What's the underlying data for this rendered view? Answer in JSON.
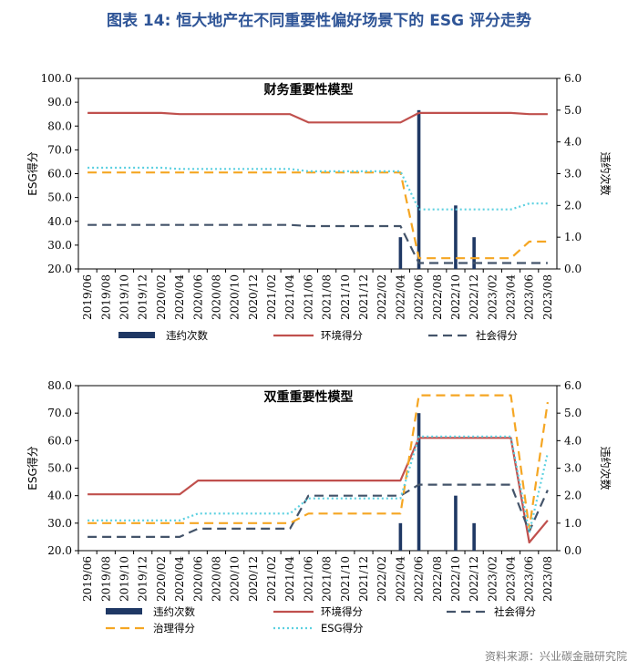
{
  "figure": {
    "title": "图表 14: 恒大地产在不同重要性偏好场景下的 ESG 评分走势",
    "source": "资料来源：兴业碳金融研究院"
  },
  "colors": {
    "violation": "#1f3864",
    "environment": "#c0504d",
    "social": "#44546a",
    "governance": "#f5a623",
    "esg": "#5bd0e0"
  },
  "chart_data": [
    {
      "type": "line",
      "title": "财务重要性模型",
      "ylabel": "ESG得分",
      "y2label": "违约次数",
      "ylim": [
        20,
        100
      ],
      "y2lim": [
        0,
        6
      ],
      "yticks": [
        "20.0",
        "30.0",
        "40.0",
        "50.0",
        "60.0",
        "70.0",
        "80.0",
        "90.0",
        "100.0"
      ],
      "y2ticks": [
        "0.0",
        "1.0",
        "2.0",
        "3.0",
        "4.0",
        "5.0",
        "6.0"
      ],
      "x": [
        "2019/06",
        "2019/08",
        "2019/10",
        "2019/12",
        "2020/02",
        "2020/04",
        "2020/06",
        "2020/08",
        "2020/10",
        "2020/12",
        "2021/02",
        "2021/04",
        "2021/06",
        "2021/08",
        "2021/10",
        "2021/12",
        "2022/02",
        "2022/04",
        "2022/06",
        "2022/08",
        "2022/10",
        "2022/12",
        "2023/02",
        "2023/04",
        "2023/06",
        "2023/08"
      ],
      "bars": {
        "name": "违约次数",
        "values": [
          0,
          0,
          0,
          0,
          0,
          0,
          0,
          0,
          0,
          0,
          0,
          0,
          0,
          0,
          0,
          0,
          0,
          1,
          5,
          0,
          2,
          1,
          0,
          0,
          0,
          0
        ]
      },
      "series": [
        {
          "name": "环境得分",
          "key": "environment",
          "dash": "solid",
          "values": [
            85.5,
            85.5,
            85.5,
            85.5,
            85.5,
            85.0,
            85.0,
            85.0,
            85.0,
            85.0,
            85.0,
            85.0,
            81.5,
            81.5,
            81.5,
            81.5,
            81.5,
            81.5,
            85.5,
            85.5,
            85.5,
            85.5,
            85.5,
            85.5,
            85.0,
            85.0
          ]
        },
        {
          "name": "社会得分",
          "key": "social",
          "dash": "dash",
          "values": [
            38.5,
            38.5,
            38.5,
            38.5,
            38.5,
            38.5,
            38.5,
            38.5,
            38.5,
            38.5,
            38.5,
            38.5,
            38.0,
            38.0,
            38.0,
            38.0,
            38.0,
            38.0,
            22.5,
            22.5,
            22.5,
            22.5,
            22.5,
            22.5,
            22.5,
            22.5
          ]
        },
        {
          "name": "治理得分",
          "key": "governance",
          "dash": "dash",
          "values": [
            60.5,
            60.5,
            60.5,
            60.5,
            60.5,
            60.5,
            60.5,
            60.5,
            60.5,
            60.5,
            60.5,
            60.5,
            60.5,
            60.5,
            60.5,
            60.5,
            60.5,
            60.5,
            24.5,
            24.5,
            24.5,
            24.5,
            24.5,
            24.5,
            31.5,
            31.5
          ]
        },
        {
          "name": "ESG得分",
          "key": "esg",
          "dash": "dot",
          "values": [
            62.5,
            62.5,
            62.5,
            62.5,
            62.5,
            62.0,
            62.0,
            62.0,
            62.0,
            62.0,
            62.0,
            62.0,
            61.0,
            61.0,
            61.0,
            61.0,
            61.0,
            61.0,
            45.0,
            45.0,
            45.0,
            45.0,
            45.0,
            45.0,
            47.5,
            47.5
          ]
        }
      ],
      "legend": [
        "违约次数",
        "环境得分",
        "社会得分"
      ]
    },
    {
      "type": "line",
      "title": "双重重要性模型",
      "ylabel": "ESG得分",
      "y2label": "违约次数",
      "ylim": [
        20,
        80
      ],
      "y2lim": [
        0,
        6
      ],
      "yticks": [
        "20.0",
        "30.0",
        "40.0",
        "50.0",
        "60.0",
        "70.0",
        "80.0"
      ],
      "y2ticks": [
        "0.0",
        "1.0",
        "2.0",
        "3.0",
        "4.0",
        "5.0",
        "6.0"
      ],
      "x": [
        "2019/06",
        "2019/08",
        "2019/10",
        "2019/12",
        "2020/02",
        "2020/04",
        "2020/06",
        "2020/08",
        "2020/10",
        "2020/12",
        "2021/02",
        "2021/04",
        "2021/06",
        "2021/08",
        "2021/10",
        "2021/12",
        "2022/02",
        "2022/04",
        "2022/06",
        "2022/08",
        "2022/10",
        "2022/12",
        "2023/02",
        "2023/04",
        "2023/06",
        "2023/08"
      ],
      "bars": {
        "name": "违约次数",
        "values": [
          0,
          0,
          0,
          0,
          0,
          0,
          0,
          0,
          0,
          0,
          0,
          0,
          0,
          0,
          0,
          0,
          0,
          1,
          5,
          0,
          2,
          1,
          0,
          0,
          0,
          0
        ]
      },
      "series": [
        {
          "name": "环境得分",
          "key": "environment",
          "dash": "solid",
          "values": [
            40.5,
            40.5,
            40.5,
            40.5,
            40.5,
            40.5,
            45.5,
            45.5,
            45.5,
            45.5,
            45.5,
            45.5,
            45.5,
            45.5,
            45.5,
            45.5,
            45.5,
            45.5,
            61.0,
            61.0,
            61.0,
            61.0,
            61.0,
            61.0,
            23.0,
            31.0
          ]
        },
        {
          "name": "社会得分",
          "key": "social",
          "dash": "dash",
          "values": [
            25.0,
            25.0,
            25.0,
            25.0,
            25.0,
            25.0,
            28.0,
            28.0,
            28.0,
            28.0,
            28.0,
            28.0,
            40.0,
            40.0,
            40.0,
            40.0,
            40.0,
            40.0,
            44.0,
            44.0,
            44.0,
            44.0,
            44.0,
            44.0,
            27.0,
            42.0
          ]
        },
        {
          "name": "治理得分",
          "key": "governance",
          "dash": "dash",
          "values": [
            30.0,
            30.0,
            30.0,
            30.0,
            30.0,
            30.0,
            30.0,
            30.0,
            30.0,
            30.0,
            30.0,
            30.0,
            33.5,
            33.5,
            33.5,
            33.5,
            33.5,
            33.5,
            76.5,
            76.5,
            76.5,
            76.5,
            76.5,
            76.5,
            28.0,
            74.0
          ]
        },
        {
          "name": "ESG得分",
          "key": "esg",
          "dash": "dot",
          "values": [
            31.0,
            31.0,
            31.0,
            31.0,
            31.0,
            31.0,
            33.5,
            33.5,
            33.5,
            33.5,
            33.5,
            33.5,
            39.0,
            39.0,
            39.0,
            39.0,
            39.0,
            39.0,
            61.5,
            61.5,
            61.5,
            61.5,
            61.5,
            61.5,
            26.5,
            55.5
          ]
        }
      ],
      "legend": [
        "违约次数",
        "环境得分",
        "社会得分",
        "治理得分",
        "ESG得分"
      ]
    }
  ]
}
